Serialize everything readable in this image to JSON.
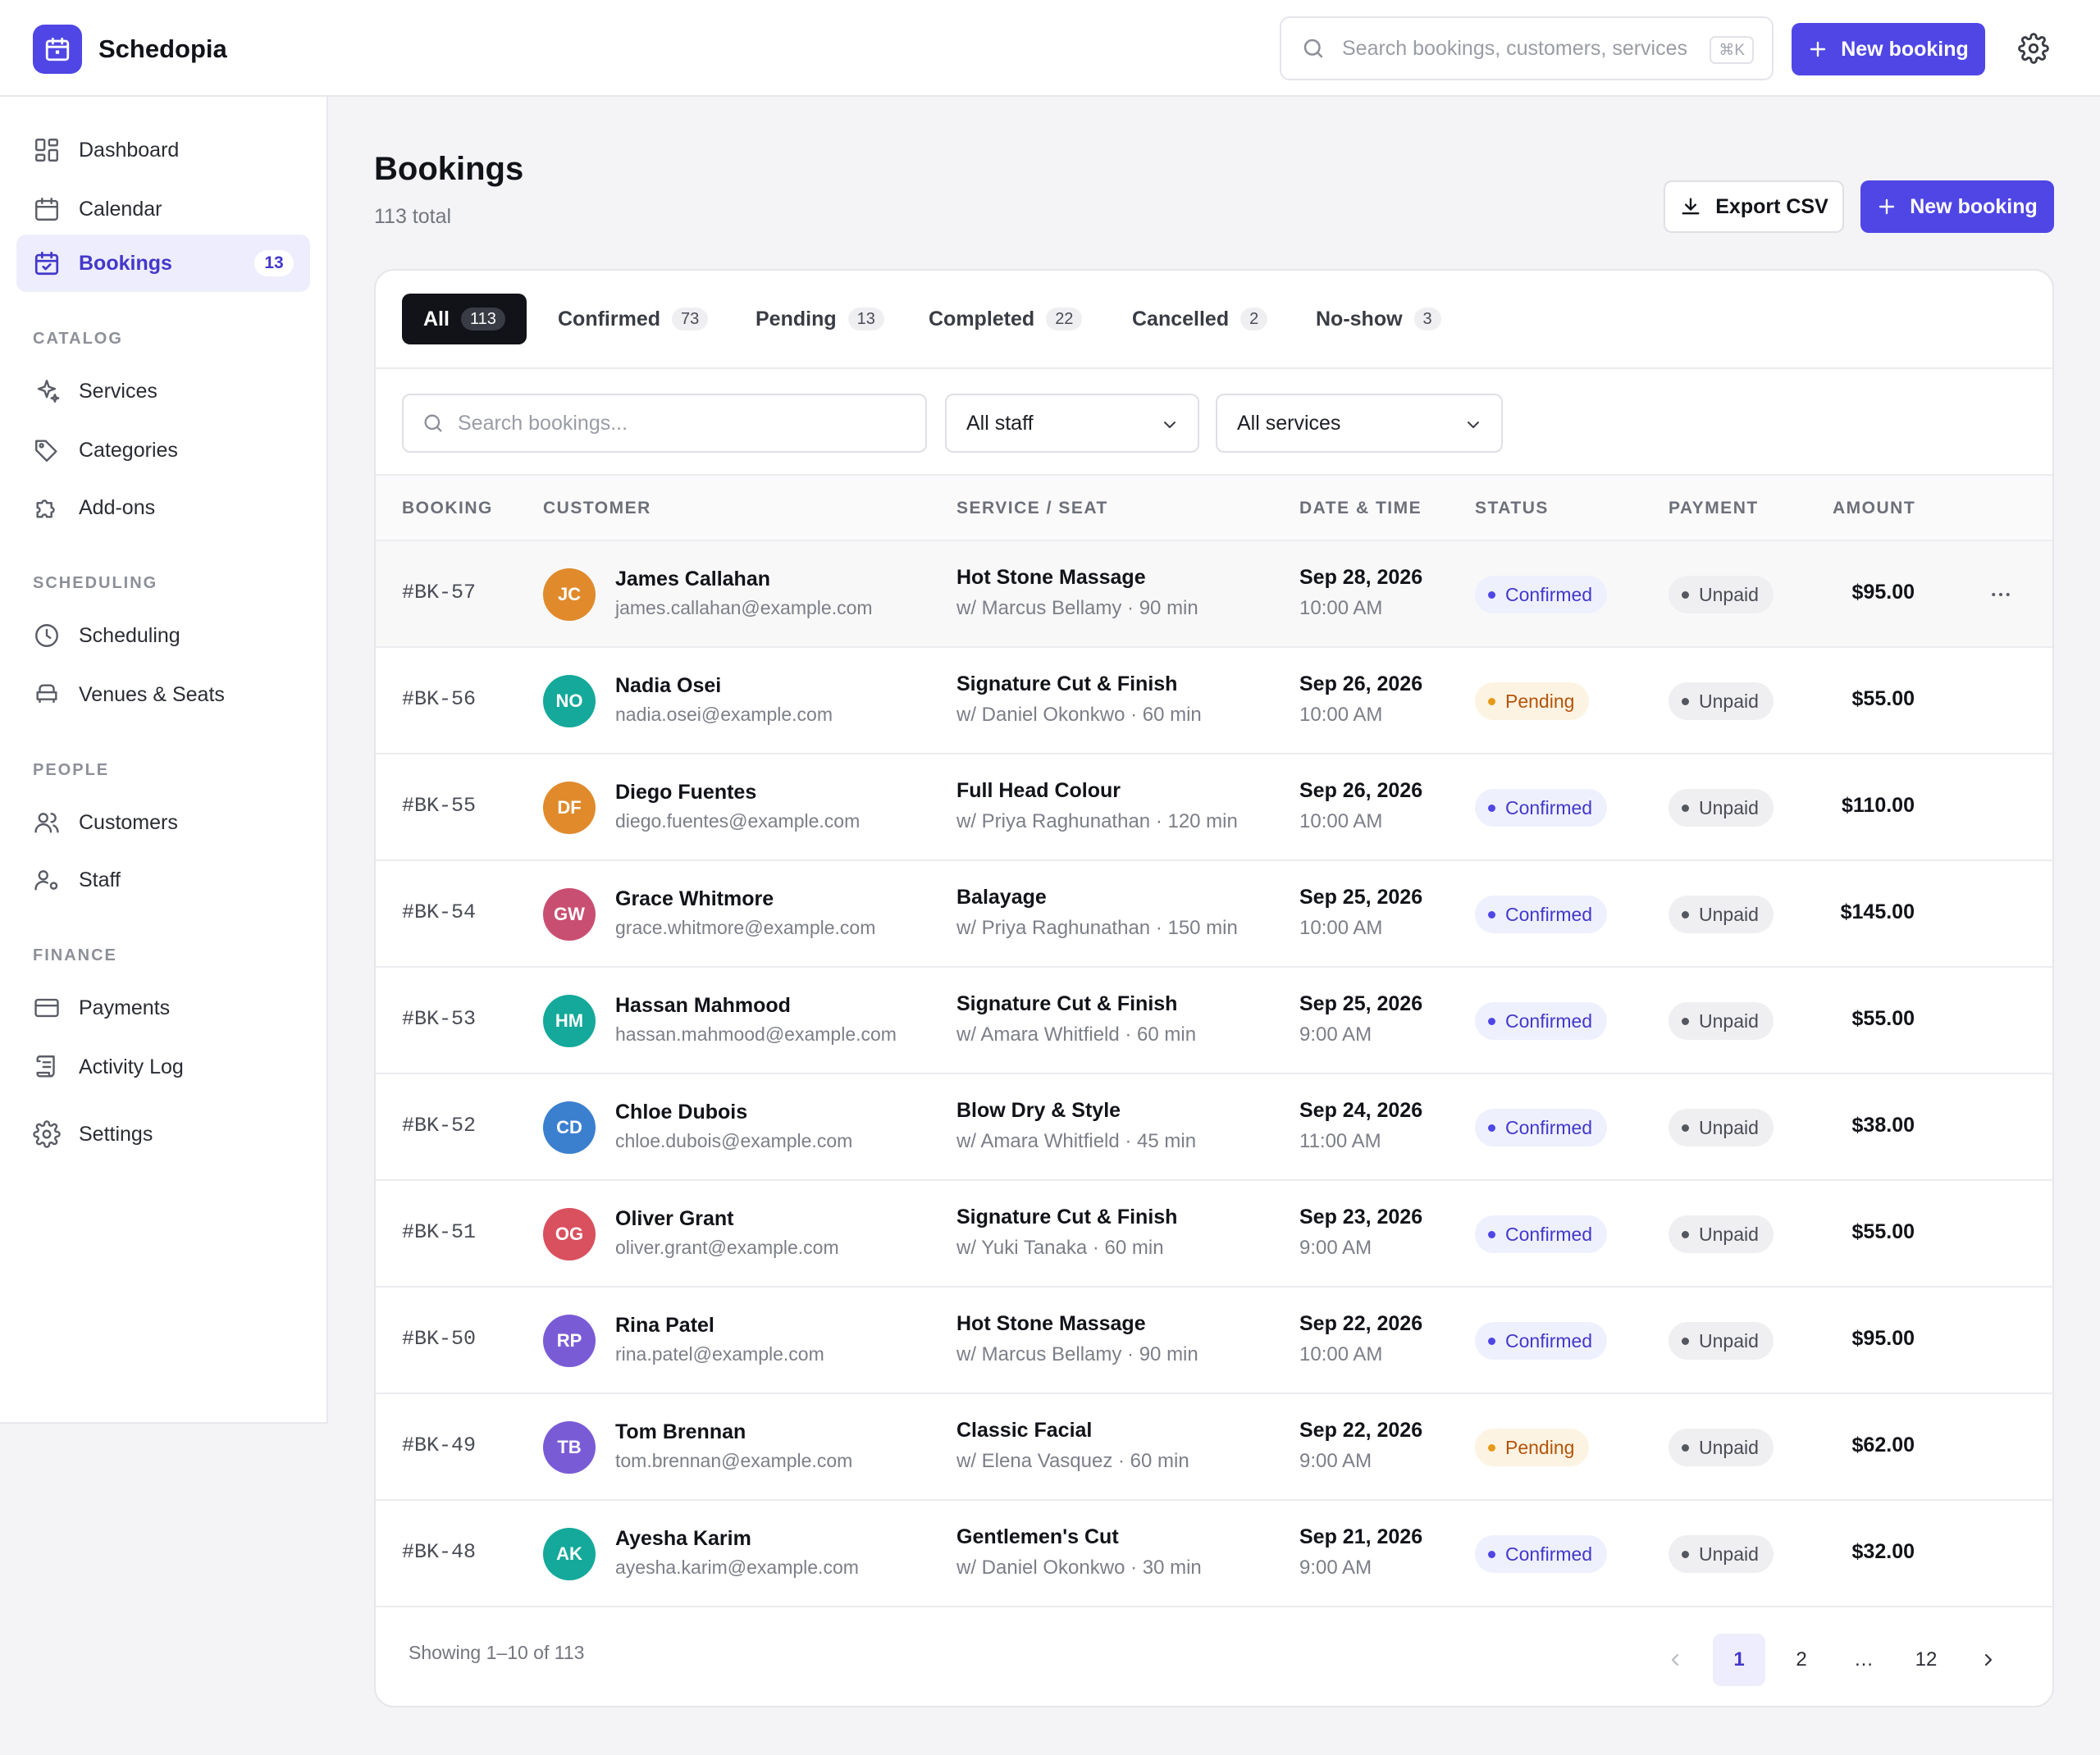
{
  "app": {
    "name": "Schedopia",
    "search_placeholder": "Search bookings, customers, services",
    "search_shortcut": "⌘K",
    "new_booking_label": "New booking",
    "accent_color": "#4f46e5"
  },
  "sidebar": {
    "items": [
      {
        "label": "Dashboard",
        "icon": "dashboard-icon"
      },
      {
        "label": "Calendar",
        "icon": "calendar-icon"
      },
      {
        "label": "Bookings",
        "icon": "calendar-check-icon",
        "badge": "13",
        "active": true
      }
    ],
    "catalog_heading": "CATALOG",
    "catalog": [
      {
        "label": "Services",
        "icon": "sparkle-icon"
      },
      {
        "label": "Categories",
        "icon": "tag-icon"
      },
      {
        "label": "Add-ons",
        "icon": "puzzle-icon"
      }
    ],
    "scheduling_heading": "SCHEDULING",
    "scheduling": [
      {
        "label": "Scheduling",
        "icon": "clock-icon"
      },
      {
        "label": "Venues & Seats",
        "icon": "armchair-icon"
      }
    ],
    "people_heading": "PEOPLE",
    "people": [
      {
        "label": "Customers",
        "icon": "users-icon"
      },
      {
        "label": "Staff",
        "icon": "staff-icon"
      }
    ],
    "finance_heading": "FINANCE",
    "finance": [
      {
        "label": "Payments",
        "icon": "credit-card-icon"
      },
      {
        "label": "Activity Log",
        "icon": "scroll-icon"
      }
    ],
    "settings": {
      "label": "Settings",
      "icon": "gear-icon"
    }
  },
  "page": {
    "title": "Bookings",
    "subtitle": "113 total",
    "export_label": "Export CSV",
    "new_booking_label": "New booking"
  },
  "tabs": [
    {
      "label": "All",
      "count": "113",
      "active": true
    },
    {
      "label": "Confirmed",
      "count": "73"
    },
    {
      "label": "Pending",
      "count": "13"
    },
    {
      "label": "Completed",
      "count": "22"
    },
    {
      "label": "Cancelled",
      "count": "2"
    },
    {
      "label": "No-show",
      "count": "3"
    }
  ],
  "filters": {
    "search_placeholder": "Search bookings...",
    "staff_value": "All staff",
    "services_value": "All services"
  },
  "table": {
    "columns": [
      "BOOKING",
      "CUSTOMER",
      "SERVICE / SEAT",
      "DATE & TIME",
      "STATUS",
      "PAYMENT",
      "AMOUNT"
    ],
    "rows": [
      {
        "id": "#BK-57",
        "initials": "JC",
        "avatar_color": "#e08a2c",
        "name": "James Callahan",
        "email": "james.callahan@example.com",
        "service": "Hot Stone Massage",
        "detail": "w/ Marcus Bellamy · 90 min",
        "date": "Sep 28, 2026",
        "time": "10:00 AM",
        "status": "Confirmed",
        "payment": "Unpaid",
        "amount": "$95.00"
      },
      {
        "id": "#BK-56",
        "initials": "NO",
        "avatar_color": "#14a99a",
        "name": "Nadia Osei",
        "email": "nadia.osei@example.com",
        "service": "Signature Cut & Finish",
        "detail": "w/ Daniel Okonkwo · 60 min",
        "date": "Sep 26, 2026",
        "time": "10:00 AM",
        "status": "Pending",
        "payment": "Unpaid",
        "amount": "$55.00"
      },
      {
        "id": "#BK-55",
        "initials": "DF",
        "avatar_color": "#e08a2c",
        "name": "Diego Fuentes",
        "email": "diego.fuentes@example.com",
        "service": "Full Head Colour",
        "detail": "w/ Priya Raghunathan · 120 min",
        "date": "Sep 26, 2026",
        "time": "10:00 AM",
        "status": "Confirmed",
        "payment": "Unpaid",
        "amount": "$110.00"
      },
      {
        "id": "#BK-54",
        "initials": "GW",
        "avatar_color": "#c94f72",
        "name": "Grace Whitmore",
        "email": "grace.whitmore@example.com",
        "service": "Balayage",
        "detail": "w/ Priya Raghunathan · 150 min",
        "date": "Sep 25, 2026",
        "time": "10:00 AM",
        "status": "Confirmed",
        "payment": "Unpaid",
        "amount": "$145.00"
      },
      {
        "id": "#BK-53",
        "initials": "HM",
        "avatar_color": "#14a99a",
        "name": "Hassan Mahmood",
        "email": "hassan.mahmood@example.com",
        "service": "Signature Cut & Finish",
        "detail": "w/ Amara Whitfield · 60 min",
        "date": "Sep 25, 2026",
        "time": "9:00 AM",
        "status": "Confirmed",
        "payment": "Unpaid",
        "amount": "$55.00"
      },
      {
        "id": "#BK-52",
        "initials": "CD",
        "avatar_color": "#3b7fcf",
        "name": "Chloe Dubois",
        "email": "chloe.dubois@example.com",
        "service": "Blow Dry & Style",
        "detail": "w/ Amara Whitfield · 45 min",
        "date": "Sep 24, 2026",
        "time": "11:00 AM",
        "status": "Confirmed",
        "payment": "Unpaid",
        "amount": "$38.00"
      },
      {
        "id": "#BK-51",
        "initials": "OG",
        "avatar_color": "#d9505f",
        "name": "Oliver Grant",
        "email": "oliver.grant@example.com",
        "service": "Signature Cut & Finish",
        "detail": "w/ Yuki Tanaka · 60 min",
        "date": "Sep 23, 2026",
        "time": "9:00 AM",
        "status": "Confirmed",
        "payment": "Unpaid",
        "amount": "$55.00"
      },
      {
        "id": "#BK-50",
        "initials": "RP",
        "avatar_color": "#7a5bd6",
        "name": "Rina Patel",
        "email": "rina.patel@example.com",
        "service": "Hot Stone Massage",
        "detail": "w/ Marcus Bellamy · 90 min",
        "date": "Sep 22, 2026",
        "time": "10:00 AM",
        "status": "Confirmed",
        "payment": "Unpaid",
        "amount": "$95.00"
      },
      {
        "id": "#BK-49",
        "initials": "TB",
        "avatar_color": "#7a5bd6",
        "name": "Tom Brennan",
        "email": "tom.brennan@example.com",
        "service": "Classic Facial",
        "detail": "w/ Elena Vasquez · 60 min",
        "date": "Sep 22, 2026",
        "time": "9:00 AM",
        "status": "Pending",
        "payment": "Unpaid",
        "amount": "$62.00"
      },
      {
        "id": "#BK-48",
        "initials": "AK",
        "avatar_color": "#14a99a",
        "name": "Ayesha Karim",
        "email": "ayesha.karim@example.com",
        "service": "Gentlemen's Cut",
        "detail": "w/ Daniel Okonkwo · 30 min",
        "date": "Sep 21, 2026",
        "time": "9:00 AM",
        "status": "Confirmed",
        "payment": "Unpaid",
        "amount": "$32.00"
      }
    ]
  },
  "pagination": {
    "summary": "Showing 1–10 of 113",
    "pages": [
      "1",
      "2",
      "…",
      "12"
    ],
    "current": "1"
  },
  "colors": {
    "confirmed_bg": "#eef0fd",
    "confirmed_fg": "#4338ca",
    "confirmed_dot": "#4f46e5",
    "pending_bg": "#fdf3e2",
    "pending_fg": "#b45309",
    "pending_dot": "#e59a1a",
    "unpaid_bg": "#efeff2",
    "unpaid_fg": "#4a4c55",
    "unpaid_dot": "#55575f"
  }
}
